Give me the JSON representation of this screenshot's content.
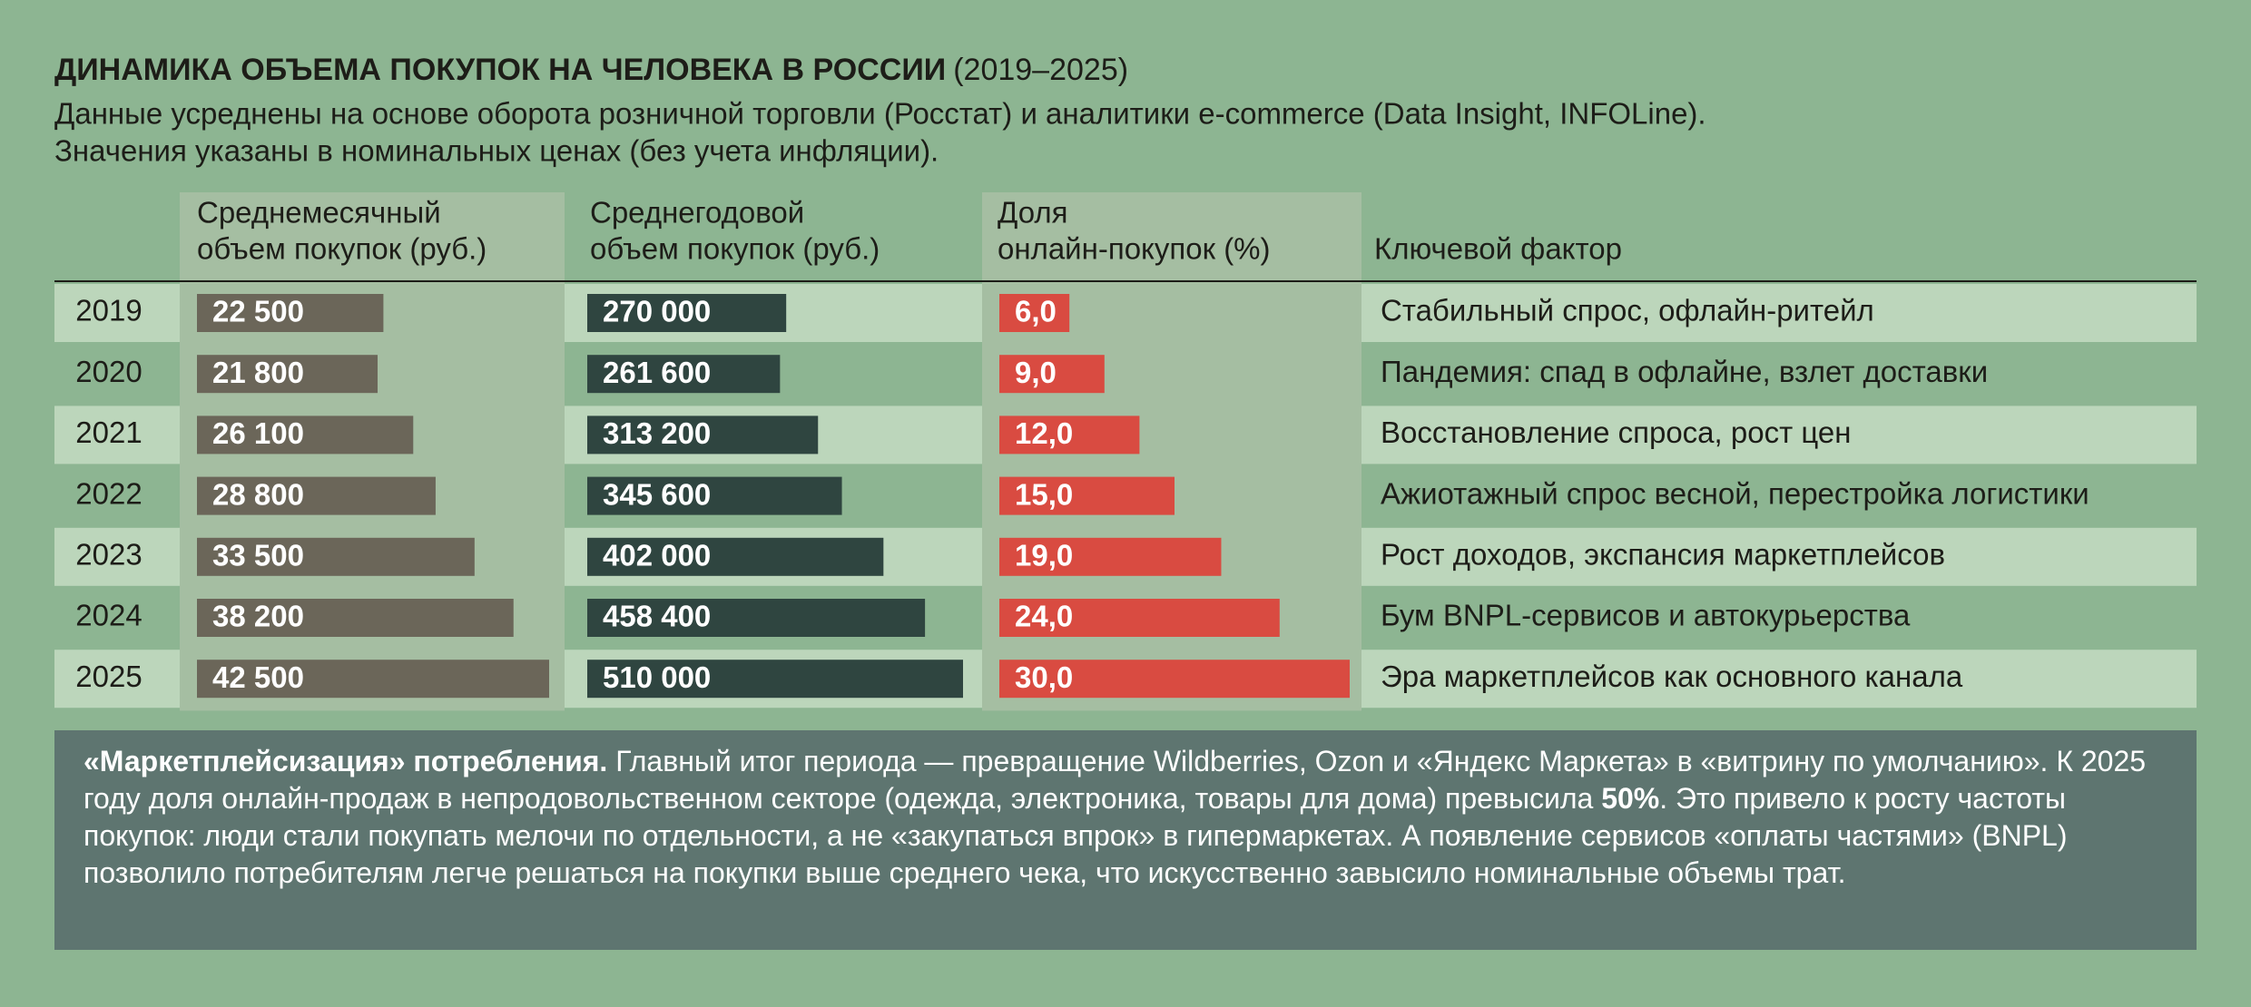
{
  "header": {
    "title": "ДИНАМИКА ОБЪЕМА ПОКУПОК НА ЧЕЛОВЕКА В РОССИИ",
    "title_period": "(2019–2025)",
    "subtitle_lines": [
      "Данные усреднены на основе оборота розничной торговли (Росстат) и аналитики e-commerce (Data Insight, INFOLine).",
      "Значения указаны в номинальных ценах (без учета инфляции)."
    ]
  },
  "table": {
    "columns": {
      "monthly": [
        "Среднемесячный",
        "объем покупок (руб.)"
      ],
      "yearly": [
        "Среднегодовой",
        "объем покупок (руб.)"
      ],
      "share": [
        "Доля",
        "онлайн-покупок (%)"
      ],
      "factor": [
        "Ключевой фактор"
      ]
    },
    "rows": [
      {
        "year": 2019,
        "monthly": {
          "value": 22500,
          "label": "22 500"
        },
        "yearly": {
          "value": 270000,
          "label": "270 000"
        },
        "share": {
          "value": 6,
          "label": "6,0"
        },
        "factor": "Стабильный спрос, офлайн-ритейл"
      },
      {
        "year": 2020,
        "monthly": {
          "value": 21800,
          "label": "21 800"
        },
        "yearly": {
          "value": 261600,
          "label": "261 600"
        },
        "share": {
          "value": 9,
          "label": "9,0"
        },
        "factor": "Пандемия: спад в офлайне, взлет доставки"
      },
      {
        "year": 2021,
        "monthly": {
          "value": 26100,
          "label": "26 100"
        },
        "yearly": {
          "value": 313200,
          "label": "313 200"
        },
        "share": {
          "value": 12,
          "label": "12,0"
        },
        "factor": "Восстановление спроса, рост цен"
      },
      {
        "year": 2022,
        "monthly": {
          "value": 28800,
          "label": "28 800"
        },
        "yearly": {
          "value": 345600,
          "label": "345 600"
        },
        "share": {
          "value": 15,
          "label": "15,0"
        },
        "factor": "Ажиотажный спрос весной, перестройка логистики"
      },
      {
        "year": 2023,
        "monthly": {
          "value": 33500,
          "label": "33 500"
        },
        "yearly": {
          "value": 402000,
          "label": "402 000"
        },
        "share": {
          "value": 19,
          "label": "19,0"
        },
        "factor": "Рост доходов, экспансия маркетплейсов"
      },
      {
        "year": 2024,
        "monthly": {
          "value": 38200,
          "label": "38 200"
        },
        "yearly": {
          "value": 458400,
          "label": "458 400"
        },
        "share": {
          "value": 24,
          "label": "24,0"
        },
        "factor": "Бум BNPL-сервисов и автокурьерства"
      },
      {
        "year": 2025,
        "monthly": {
          "value": 42500,
          "label": "42 500"
        },
        "yearly": {
          "value": 510000,
          "label": "510 000"
        },
        "share": {
          "value": 30,
          "label": "30,0"
        },
        "factor": "Эра маркетплейсов как основного канала"
      }
    ]
  },
  "note": {
    "lead": "«Маркетплейсизация» потребления.",
    "text_before": " Главный итог периода — превращение Wildberries, Ozon и «Яндекс Маркета» в «витрину по умолчанию». К 2025 году доля онлайн-продаж в непродовольственном секторе (одежда, электроника, товары для дома) превысила ",
    "highlight": "50%",
    "text_after": ". Это привело к росту частоты покупок: люди стали покупать мелочи по отдельности, а не «закупаться впрок» в гипермаркетах. А появление сервисов «оплаты частями» (BNPL) позволило потребителям легче решаться на покупки выше среднего чека, что искусственно завысило номинальные объемы трат."
  }
}
